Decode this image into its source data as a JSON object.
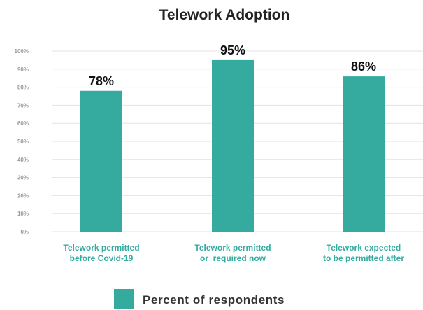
{
  "chart_data": {
    "type": "bar",
    "title": "Telework Adoption",
    "categories": [
      [
        "Telework permitted",
        "before Covid-19"
      ],
      [
        "Telework permitted",
        "or  required now"
      ],
      [
        "Telework expected",
        "to be permitted after"
      ]
    ],
    "series": [
      {
        "name": "Percent of respondents",
        "values": [
          78,
          95,
          86
        ]
      }
    ],
    "data_labels": [
      "78%",
      "95%",
      "86%"
    ],
    "y_ticks": [
      "0%",
      "10%",
      "20%",
      "30%",
      "40%",
      "50%",
      "60%",
      "70%",
      "80%",
      "90%",
      "100%"
    ],
    "ylim": [
      0,
      100
    ],
    "xlabel": "",
    "ylabel": "",
    "grid": true,
    "legend_position": "bottom",
    "colors": {
      "bar": "#35aba0",
      "category_text": "#35aba0",
      "grid": "#e3e3e3",
      "tick_text": "#9a9a9a"
    }
  }
}
